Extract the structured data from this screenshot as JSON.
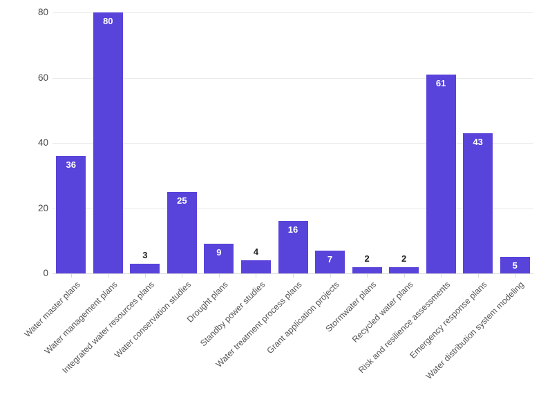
{
  "chart_data": {
    "type": "bar",
    "title": "",
    "xlabel": "",
    "ylabel": "",
    "categories": [
      "Water master plans",
      "Water management plans",
      "Integrated water resources plans",
      "Water conservation studies",
      "Drought plans",
      "Standby power studies",
      "Water treatment process plans",
      "Grant application projects",
      "Stormwater plans",
      "Recycled water plans",
      "Risk and resilience assessments",
      "Emergency response plans",
      "Water distribution system modeling"
    ],
    "values": [
      36,
      80,
      3,
      25,
      9,
      4,
      16,
      7,
      2,
      2,
      61,
      43,
      5
    ],
    "ylim": [
      0,
      80
    ],
    "yticks": [
      0,
      20,
      40,
      60,
      80
    ],
    "grid": "horizontal",
    "legend": "none",
    "colors": {
      "bar": "#5843db",
      "value_label_inside": "#ffffff",
      "value_label_outside": "#1f1f1f",
      "gridline": "#e9e9e9",
      "axis_line": "#d8d8d8",
      "y_tick_label": "#474747",
      "x_tick_label": "#555555",
      "background": "#ffffff"
    }
  }
}
